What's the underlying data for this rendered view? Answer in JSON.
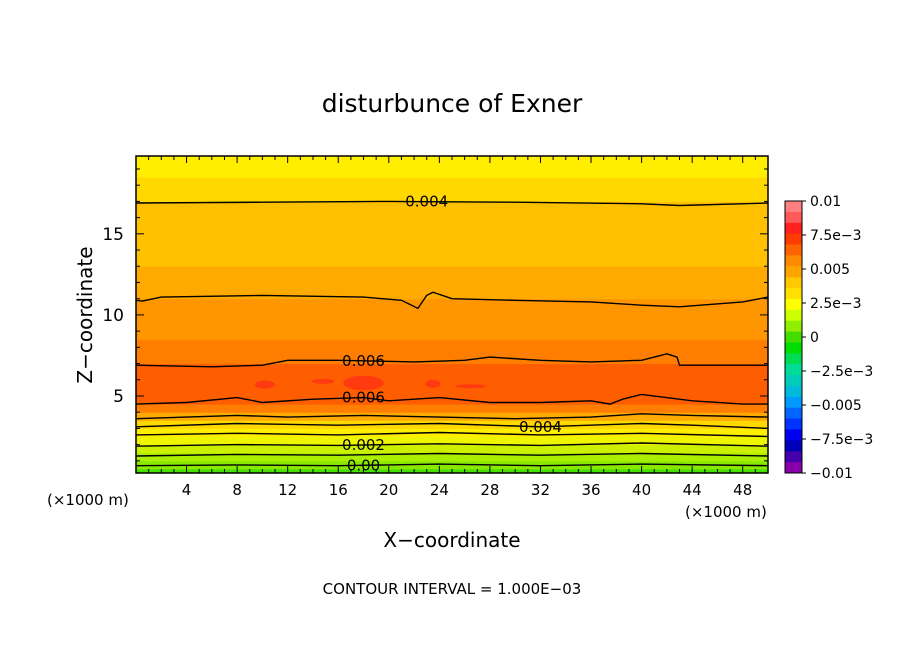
{
  "chart_data": {
    "type": "heatmap",
    "title": "disturbunce of Exner",
    "xlabel": "X−coordinate",
    "ylabel": "Z−coordinate",
    "x_unit": "(×1000 m)",
    "z_unit": "(×1000 m)",
    "footer": "CONTOUR INTERVAL = 1.000E−03",
    "xlim": [
      0,
      50
    ],
    "ylim": [
      0.25,
      19.8
    ],
    "x_ticks": [
      4,
      8,
      12,
      16,
      20,
      24,
      28,
      32,
      36,
      40,
      44,
      48
    ],
    "x_tick_labels": [
      "4",
      "8",
      "12",
      "16",
      "20",
      "24",
      "28",
      "32",
      "36",
      "40",
      "44",
      "48"
    ],
    "y_ticks": [
      5,
      10,
      15
    ],
    "y_tick_labels": [
      "5",
      "10",
      "15"
    ],
    "grid": false,
    "colorbar": {
      "placement": "right",
      "range": [
        -0.01,
        0.01
      ],
      "levels": [
        -0.01,
        -0.0075,
        -0.005,
        -0.0025,
        0,
        0.0025,
        0.005,
        0.0075,
        0.01
      ],
      "labels": [
        "0.01",
        "7.5e−3",
        "0.005",
        "2.5e−3",
        "0",
        "−2.5e−3",
        "−0.005",
        "−7.5e−3",
        "−0.01"
      ],
      "colors": [
        "#ff8080",
        "#ff5a5a",
        "#ff2020",
        "#ff3c00",
        "#ff6400",
        "#ff8c00",
        "#ffa500",
        "#ffc800",
        "#ffe000",
        "#ffff00",
        "#ccff00",
        "#90ee00",
        "#44dd00",
        "#00dd00",
        "#00dd55",
        "#00dd99",
        "#00ccbb",
        "#00bbdd",
        "#0099ff",
        "#0066ff",
        "#0033ff",
        "#0000ee",
        "#0000bb",
        "#4400aa",
        "#8800aa"
      ]
    },
    "band_colors": [
      "#22dd00",
      "#44e000",
      "#66e400",
      "#88e800",
      "#aaee00",
      "#ccf000",
      "#eef500",
      "#ffee00",
      "#ffd800",
      "#ffc000",
      "#ffaa00",
      "#ff9600",
      "#ff7e00",
      "#ff5e00",
      "#ff3a10"
    ],
    "vertical_profile": {
      "z": [
        0.25,
        0.5,
        1.0,
        1.5,
        2.0,
        2.5,
        3.0,
        3.5,
        4.0,
        4.5,
        5.5,
        7.0,
        8.5,
        10.0,
        11.0,
        13.0,
        15.0,
        17.0,
        18.5,
        19.8
      ],
      "value": [
        0.0,
        0.0005,
        0.0015,
        0.002,
        0.0025,
        0.003,
        0.0035,
        0.004,
        0.005,
        0.006,
        0.0065,
        0.006,
        0.0055,
        0.0052,
        0.005,
        0.0045,
        0.0042,
        0.004,
        0.0034,
        0.0028
      ]
    },
    "contours": [
      {
        "level": "0.004",
        "label": "0.004",
        "label_x": 23,
        "points": [
          [
            0,
            16.9
          ],
          [
            10,
            16.95
          ],
          [
            20,
            17.0
          ],
          [
            30,
            16.95
          ],
          [
            40,
            16.85
          ],
          [
            43,
            16.75
          ],
          [
            50,
            16.9
          ]
        ]
      },
      {
        "level": "0.005",
        "label": "",
        "label_x": null,
        "points": [
          [
            0,
            10.9
          ],
          [
            0.5,
            10.85
          ],
          [
            2,
            11.1
          ],
          [
            10,
            11.2
          ],
          [
            18,
            11.1
          ],
          [
            21,
            10.9
          ],
          [
            22.3,
            10.4
          ],
          [
            23,
            11.2
          ],
          [
            23.5,
            11.4
          ],
          [
            25,
            11.0
          ],
          [
            30,
            10.9
          ],
          [
            36,
            10.8
          ],
          [
            40,
            10.6
          ],
          [
            43,
            10.5
          ],
          [
            48,
            10.8
          ],
          [
            50,
            11.1
          ]
        ]
      },
      {
        "level": "0.006",
        "label": "0.006",
        "label_x": 18,
        "points": [
          [
            0,
            6.9
          ],
          [
            6,
            6.8
          ],
          [
            10,
            6.9
          ],
          [
            12,
            7.2
          ],
          [
            16,
            7.2
          ],
          [
            22,
            7.1
          ],
          [
            26,
            7.2
          ],
          [
            28,
            7.4
          ],
          [
            32,
            7.2
          ],
          [
            36,
            7.1
          ],
          [
            40,
            7.2
          ],
          [
            42,
            7.6
          ],
          [
            42.8,
            7.4
          ],
          [
            43,
            6.9
          ],
          [
            50,
            6.9
          ]
        ]
      },
      {
        "level": "0.006",
        "label": "0.006",
        "label_x": 18,
        "points": [
          [
            0,
            4.5
          ],
          [
            4,
            4.6
          ],
          [
            8,
            4.9
          ],
          [
            10,
            4.6
          ],
          [
            14,
            4.8
          ],
          [
            18,
            4.9
          ],
          [
            20,
            4.7
          ],
          [
            24,
            4.9
          ],
          [
            28,
            4.6
          ],
          [
            32,
            4.6
          ],
          [
            36,
            4.7
          ],
          [
            37.5,
            4.5
          ],
          [
            38.5,
            4.8
          ],
          [
            40,
            5.1
          ],
          [
            44,
            4.7
          ],
          [
            48,
            4.5
          ],
          [
            50,
            4.5
          ]
        ]
      },
      {
        "level": "0.005",
        "label": "",
        "label_x": null,
        "points": [
          [
            0,
            3.6
          ],
          [
            8,
            3.8
          ],
          [
            12,
            3.7
          ],
          [
            18,
            3.8
          ],
          [
            24,
            3.7
          ],
          [
            30,
            3.6
          ],
          [
            36,
            3.7
          ],
          [
            40,
            3.9
          ],
          [
            44,
            3.8
          ],
          [
            50,
            3.7
          ]
        ]
      },
      {
        "level": "0.004",
        "label": "0.004",
        "label_x": 32,
        "points": [
          [
            0,
            3.1
          ],
          [
            8,
            3.3
          ],
          [
            16,
            3.2
          ],
          [
            24,
            3.3
          ],
          [
            32,
            3.1
          ],
          [
            40,
            3.3
          ],
          [
            44,
            3.2
          ],
          [
            50,
            3.0
          ]
        ]
      },
      {
        "level": "0.003",
        "label": "",
        "label_x": null,
        "points": [
          [
            0,
            2.6
          ],
          [
            8,
            2.7
          ],
          [
            16,
            2.6
          ],
          [
            24,
            2.75
          ],
          [
            32,
            2.6
          ],
          [
            40,
            2.7
          ],
          [
            50,
            2.5
          ]
        ]
      },
      {
        "level": "0.002",
        "label": "0.002",
        "label_x": 18,
        "points": [
          [
            0,
            1.9
          ],
          [
            8,
            2.0
          ],
          [
            16,
            1.95
          ],
          [
            24,
            2.05
          ],
          [
            32,
            1.95
          ],
          [
            40,
            2.1
          ],
          [
            50,
            1.9
          ]
        ]
      },
      {
        "level": "0.001",
        "label": "",
        "label_x": null,
        "points": [
          [
            0,
            1.3
          ],
          [
            8,
            1.4
          ],
          [
            16,
            1.35
          ],
          [
            24,
            1.45
          ],
          [
            32,
            1.35
          ],
          [
            40,
            1.45
          ],
          [
            50,
            1.3
          ]
        ]
      },
      {
        "level": "0.00",
        "label": "0.00",
        "label_x": 18,
        "points": [
          [
            0,
            0.7
          ],
          [
            8,
            0.75
          ],
          [
            16,
            0.7
          ],
          [
            24,
            0.8
          ],
          [
            32,
            0.7
          ],
          [
            40,
            0.8
          ],
          [
            50,
            0.7
          ]
        ]
      }
    ],
    "highs": [
      [
        10.2,
        5.7,
        0.8,
        0.25
      ],
      [
        14.8,
        5.9,
        0.9,
        0.15
      ],
      [
        18.0,
        5.8,
        1.6,
        0.45
      ],
      [
        23.5,
        5.75,
        0.6,
        0.25
      ],
      [
        26.5,
        5.6,
        1.2,
        0.12
      ]
    ]
  }
}
